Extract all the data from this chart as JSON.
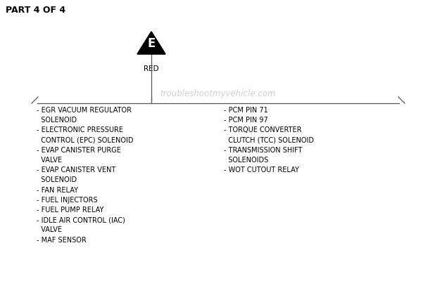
{
  "title": "PART 4 OF 4",
  "background_color": "#ffffff",
  "triangle_label": "E",
  "wire_label": "RED",
  "watermark": "troubleshootmyvehicle.com",
  "left_items": [
    "- EGR VACUUM REGULATOR",
    "  SOLENOID",
    "- ELECTRONIC PRESSURE",
    "  CONTROL (EPC) SOLENOID",
    "- EVAP CANISTER PURGE",
    "  VALVE",
    "- EVAP CANISTER VENT",
    "  SOLENOID",
    "- FAN RELAY",
    "- FUEL INJECTORS",
    "- FUEL PUMP RELAY",
    "- IDLE AIR CONTROL (IAC)",
    "  VALVE",
    "- MAF SENSOR"
  ],
  "right_items": [
    "- PCM PIN 71",
    "- PCM PIN 97",
    "- TORQUE CONVERTER",
    "  CLUTCH (TCC) SOLENOID",
    "- TRANSMISSION SHIFT",
    "  SOLENOIDS",
    "- WOT CUTOUT RELAY"
  ],
  "fig_width": 6.18,
  "fig_height": 4.0,
  "dpi": 100
}
